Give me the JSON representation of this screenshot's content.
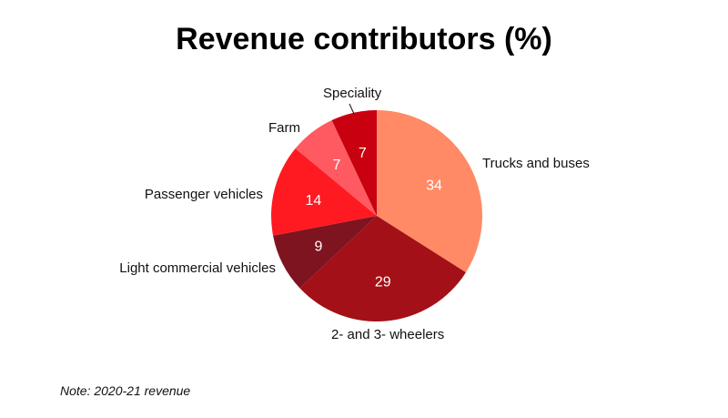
{
  "chart_data": {
    "type": "pie",
    "title": "Revenue contributors (%)",
    "start_angle": "12 o'clock, clockwise",
    "slices": [
      {
        "label": "Trucks and buses",
        "value": 34,
        "color": "#FF8A65"
      },
      {
        "label": "2- and 3- wheelers",
        "value": 29,
        "color": "#A31017"
      },
      {
        "label": "Light commercial vehicles",
        "value": 9,
        "color": "#7E1420"
      },
      {
        "label": "Passenger vehicles",
        "value": 14,
        "color": "#FF1A22"
      },
      {
        "label": "Farm",
        "value": 7,
        "color": "#FF5A62"
      },
      {
        "label": "Speciality",
        "value": 7,
        "color": "#C8000F"
      }
    ],
    "note": "Note: 2020-21 revenue"
  }
}
